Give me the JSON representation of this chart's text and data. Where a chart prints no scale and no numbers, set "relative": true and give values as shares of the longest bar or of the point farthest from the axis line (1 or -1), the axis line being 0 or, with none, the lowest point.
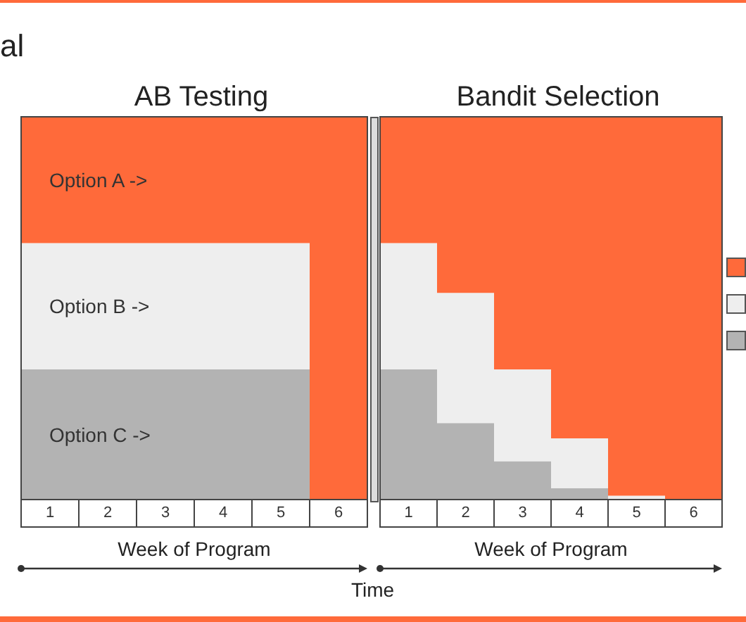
{
  "chart_data": [
    {
      "type": "bar",
      "title": "AB Testing",
      "xlabel": "Week of Program",
      "categories": [
        "1",
        "2",
        "3",
        "4",
        "5",
        "6"
      ],
      "stacked": true,
      "relative": true,
      "series": [
        {
          "name": "Option C ->",
          "color": "#b3b3b3",
          "values": [
            0.34,
            0.34,
            0.34,
            0.34,
            0.34,
            0
          ]
        },
        {
          "name": "Option B ->",
          "color": "#eeeeee",
          "values": [
            0.33,
            0.33,
            0.33,
            0.33,
            0.33,
            0
          ]
        },
        {
          "name": "Option A ->",
          "color": "#ff6a3a",
          "values": [
            0.33,
            0.33,
            0.33,
            0.33,
            0.33,
            1
          ]
        }
      ],
      "annotations": [
        "al"
      ]
    },
    {
      "type": "bar",
      "title": "Bandit Selection",
      "xlabel": "Week of Program",
      "categories": [
        "1",
        "2",
        "3",
        "4",
        "5",
        "6"
      ],
      "stacked": true,
      "relative": true,
      "series": [
        {
          "color": "#b3b3b3",
          "values": [
            0.34,
            0.2,
            0.1,
            0.03,
            0,
            0
          ]
        },
        {
          "color": "#eeeeee",
          "values": [
            0.33,
            0.34,
            0.24,
            0.13,
            0.01,
            0
          ]
        },
        {
          "color": "#ff6a3a",
          "values": [
            0.33,
            0.46,
            0.66,
            0.84,
            0.99,
            1
          ]
        }
      ],
      "annotations": [
        "Time"
      ]
    }
  ]
}
